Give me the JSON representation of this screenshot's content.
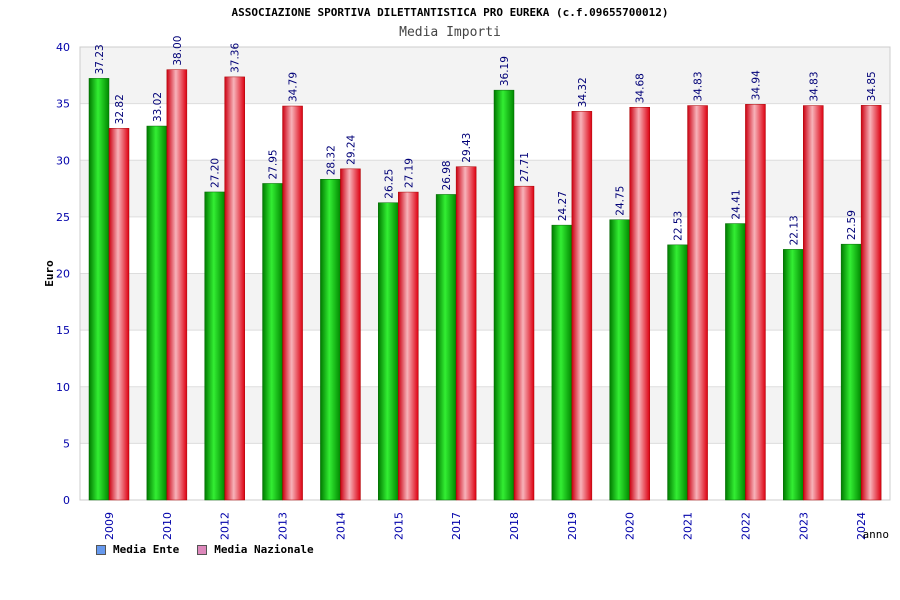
{
  "chart_data": {
    "type": "bar",
    "title": "ASSOCIAZIONE SPORTIVA DILETTANTISTICA PRO EUREKA (c.f.09655700012)",
    "subtitle": "Media Importi",
    "ylabel": "Euro",
    "xlabel": "anno",
    "ylim": [
      0,
      40
    ],
    "yticks": [
      0,
      5,
      10,
      15,
      20,
      25,
      30,
      35,
      40
    ],
    "grid": true,
    "legend_position": "bottom-left",
    "categories": [
      "2009",
      "2010",
      "2012",
      "2013",
      "2014",
      "2015",
      "2017",
      "2018",
      "2019",
      "2020",
      "2021",
      "2022",
      "2023",
      "2024"
    ],
    "series": [
      {
        "name": "Media Ente",
        "color": "#00bb00",
        "legend_color": "#6699ee",
        "values": [
          37.23,
          33.02,
          27.2,
          27.95,
          28.32,
          26.25,
          26.98,
          36.19,
          24.27,
          24.75,
          22.53,
          24.41,
          22.13,
          22.59
        ],
        "labels": [
          "37.23",
          "33.02",
          "27.20",
          "27.95",
          "28.32",
          "26.25",
          "26.98",
          "36.19",
          "24.27",
          "24.75",
          "22.53",
          "24.41",
          "22.13",
          "22.59"
        ]
      },
      {
        "name": "Media Nazionale",
        "color": "#ee1122",
        "legend_color": "#dd88bb",
        "values": [
          32.82,
          38.0,
          37.36,
          34.79,
          29.24,
          27.19,
          29.43,
          27.71,
          34.32,
          34.68,
          34.83,
          34.94,
          34.83,
          34.85
        ],
        "labels": [
          "32.82",
          "38.00",
          "37.36",
          "34.79",
          "29.24",
          "27.19",
          "29.43",
          "27.71",
          "34.32",
          "34.68",
          "34.83",
          "34.94",
          "34.83",
          "34.85"
        ]
      }
    ]
  }
}
